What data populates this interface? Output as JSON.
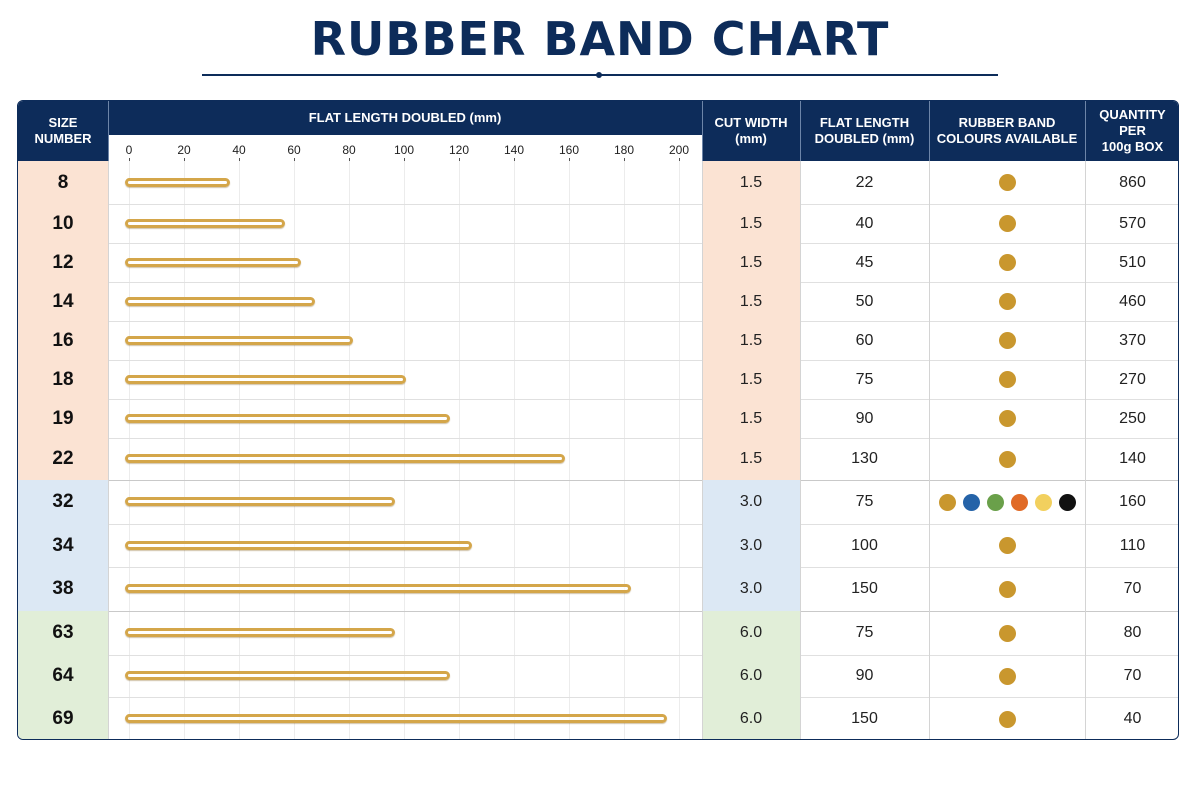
{
  "title": "RUBBER BAND CHART",
  "headers": {
    "size": "SIZE\nNUMBER",
    "bar": "FLAT LENGTH DOUBLED (mm)",
    "cut_width": "CUT WIDTH\n(mm)",
    "flat_length": "FLAT LENGTH\nDOUBLED (mm)",
    "colours": "RUBBER BAND\nCOLOURS AVAILABLE",
    "quantity": "QUANTITY\nPER\n100g BOX"
  },
  "colors": {
    "header": "#0d2c5a",
    "band": "#d4a64a",
    "group_1_5": "#fbe3d3",
    "group_3_0": "#dce8f4",
    "group_6_0": "#e1eed8"
  },
  "swatch_palette": {
    "tan": "#c9972e",
    "blue": "#2563a8",
    "green": "#6aa04a",
    "orange": "#e06a26",
    "yellow": "#f2d05e",
    "black": "#111111"
  },
  "chart_data": {
    "type": "bar",
    "title": "RUBBER BAND CHART",
    "xlabel": "FLAT LENGTH DOUBLED (mm)",
    "ylabel": "SIZE NUMBER",
    "xlim": [
      0,
      200
    ],
    "xticks": [
      "0",
      "20",
      "40",
      "60",
      "80",
      "100",
      "120",
      "140",
      "160",
      "180",
      "200"
    ],
    "categories": [
      "8",
      "10",
      "12",
      "14",
      "16",
      "18",
      "19",
      "22",
      "32",
      "34",
      "38",
      "63",
      "64",
      "69"
    ],
    "values": [
      38,
      58,
      64,
      69,
      83,
      102,
      118,
      160,
      98,
      126,
      184,
      98,
      118,
      197
    ],
    "rows": [
      {
        "size": "8",
        "cut_width": "1.5",
        "flat_length": "22",
        "colours": [
          "tan"
        ],
        "quantity": "860"
      },
      {
        "size": "10",
        "cut_width": "1.5",
        "flat_length": "40",
        "colours": [
          "tan"
        ],
        "quantity": "570"
      },
      {
        "size": "12",
        "cut_width": "1.5",
        "flat_length": "45",
        "colours": [
          "tan"
        ],
        "quantity": "510"
      },
      {
        "size": "14",
        "cut_width": "1.5",
        "flat_length": "50",
        "colours": [
          "tan"
        ],
        "quantity": "460"
      },
      {
        "size": "16",
        "cut_width": "1.5",
        "flat_length": "60",
        "colours": [
          "tan"
        ],
        "quantity": "370"
      },
      {
        "size": "18",
        "cut_width": "1.5",
        "flat_length": "75",
        "colours": [
          "tan"
        ],
        "quantity": "270"
      },
      {
        "size": "19",
        "cut_width": "1.5",
        "flat_length": "90",
        "colours": [
          "tan"
        ],
        "quantity": "250"
      },
      {
        "size": "22",
        "cut_width": "1.5",
        "flat_length": "130",
        "colours": [
          "tan"
        ],
        "quantity": "140"
      },
      {
        "size": "32",
        "cut_width": "3.0",
        "flat_length": "75",
        "colours": [
          "tan",
          "blue",
          "green",
          "orange",
          "yellow",
          "black"
        ],
        "quantity": "160"
      },
      {
        "size": "34",
        "cut_width": "3.0",
        "flat_length": "100",
        "colours": [
          "tan"
        ],
        "quantity": "110"
      },
      {
        "size": "38",
        "cut_width": "3.0",
        "flat_length": "150",
        "colours": [
          "tan"
        ],
        "quantity": "70"
      },
      {
        "size": "63",
        "cut_width": "6.0",
        "flat_length": "75",
        "colours": [
          "tan"
        ],
        "quantity": "80"
      },
      {
        "size": "64",
        "cut_width": "6.0",
        "flat_length": "90",
        "colours": [
          "tan"
        ],
        "quantity": "70"
      },
      {
        "size": "69",
        "cut_width": "6.0",
        "flat_length": "150",
        "colours": [
          "tan"
        ],
        "quantity": "40"
      }
    ]
  }
}
